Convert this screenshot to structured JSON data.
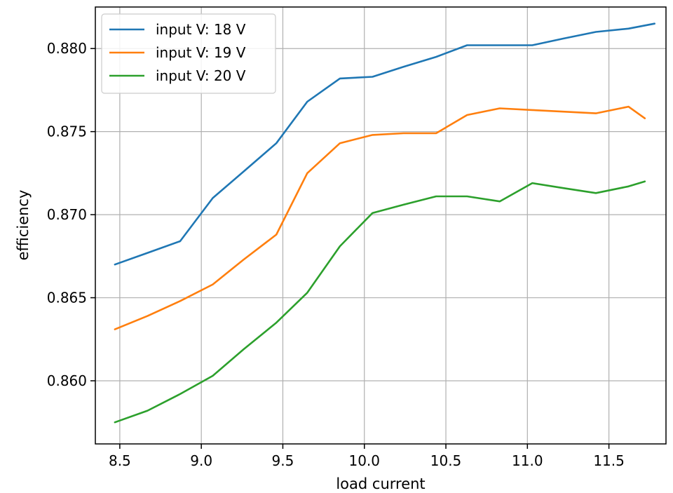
{
  "chart_data": {
    "type": "line",
    "title": "",
    "xlabel": "load current",
    "ylabel": "efficiency",
    "xlim": [
      8.35,
      11.85
    ],
    "ylim": [
      0.8562,
      0.8825
    ],
    "grid": true,
    "legend_position": "top-left",
    "x_ticks": [
      8.5,
      9.0,
      9.5,
      10.0,
      10.5,
      11.0,
      11.5
    ],
    "x_tick_labels": [
      "8.5",
      "9.0",
      "9.5",
      "10.0",
      "10.5",
      "11.0",
      "11.5"
    ],
    "y_ticks": [
      0.86,
      0.865,
      0.87,
      0.875,
      0.88
    ],
    "y_tick_labels": [
      "0.860",
      "0.865",
      "0.870",
      "0.875",
      "0.880"
    ],
    "series": [
      {
        "name": "input V: 18 V",
        "color": "#1f77b4",
        "x": [
          8.47,
          8.67,
          8.87,
          9.07,
          9.26,
          9.46,
          9.65,
          9.85,
          10.05,
          10.24,
          10.44,
          10.63,
          10.83,
          11.03,
          11.22,
          11.42,
          11.62,
          11.78
        ],
        "y": [
          0.867,
          0.8677,
          0.8684,
          0.871,
          0.8726,
          0.8743,
          0.8768,
          0.8782,
          0.8783,
          0.8789,
          0.8795,
          0.8802,
          0.8802,
          0.8802,
          0.8806,
          0.881,
          0.8812,
          0.8815
        ]
      },
      {
        "name": "input V: 19 V",
        "color": "#ff7f0e",
        "x": [
          8.47,
          8.67,
          8.87,
          9.07,
          9.26,
          9.46,
          9.65,
          9.85,
          10.05,
          10.24,
          10.44,
          10.63,
          10.83,
          11.03,
          11.22,
          11.42,
          11.62,
          11.72
        ],
        "y": [
          0.8631,
          0.8639,
          0.8648,
          0.8658,
          0.8673,
          0.8688,
          0.8725,
          0.8743,
          0.8748,
          0.8749,
          0.8749,
          0.876,
          0.8764,
          0.8763,
          0.8762,
          0.8761,
          0.8765,
          0.8758
        ]
      },
      {
        "name": "input V: 20 V",
        "color": "#2ca02c",
        "x": [
          8.47,
          8.67,
          8.87,
          9.07,
          9.26,
          9.46,
          9.65,
          9.85,
          10.05,
          10.24,
          10.44,
          10.63,
          10.83,
          11.03,
          11.22,
          11.42,
          11.62,
          11.72
        ],
        "y": [
          0.8575,
          0.8582,
          0.8592,
          0.8603,
          0.8619,
          0.8635,
          0.8653,
          0.8681,
          0.8701,
          0.8706,
          0.8711,
          0.8711,
          0.8708,
          0.8719,
          0.8716,
          0.8713,
          0.8717,
          0.872
        ]
      }
    ]
  }
}
